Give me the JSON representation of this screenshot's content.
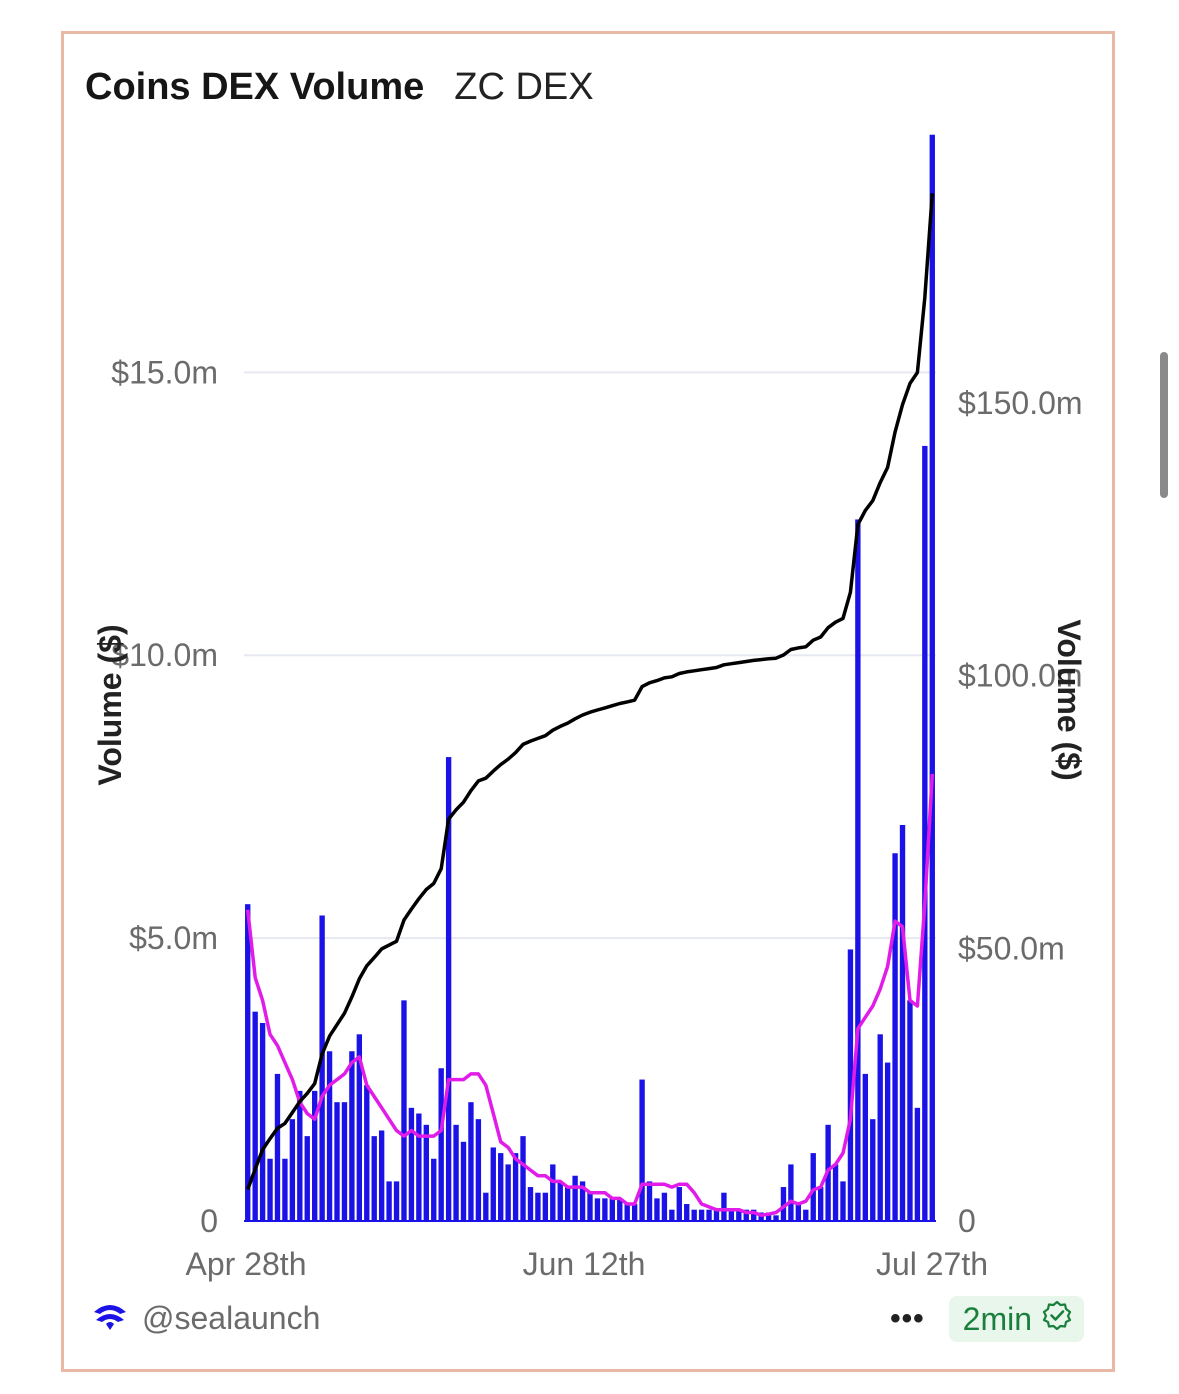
{
  "header": {
    "title": "Coins DEX Volume",
    "subtitle": "ZC DEX"
  },
  "footer": {
    "handle": "@sealaunch",
    "more": "•••",
    "freshness": "2min"
  },
  "icons": {
    "logo": "sealaunch-logo-icon",
    "verified": "verified-check-icon"
  },
  "colors": {
    "bars": "#1a12e6",
    "moving_average": "#e21ce8",
    "cumulative": "#000000",
    "grid": "#e6e8f2",
    "border": "#e9b9a5"
  },
  "chart_data": {
    "type": "bar",
    "x_ticks": [
      "Apr 28th",
      "Jun 12th",
      "Jul 27th"
    ],
    "x_range": [
      "Apr 28th",
      "Jul 27th"
    ],
    "left_axis": {
      "label": "Volume ($)",
      "ticks": [
        "0",
        "$5.0m",
        "$10.0m",
        "$15.0m"
      ],
      "tick_values": [
        0,
        5,
        10,
        15
      ],
      "range": [
        0,
        18.4
      ],
      "unit": "$m"
    },
    "right_axis": {
      "label": "Volume ($)",
      "ticks": [
        "0",
        "$50.0m",
        "$100.0m",
        "$150.0m"
      ],
      "tick_values": [
        0,
        50,
        100,
        150
      ],
      "range": [
        0,
        190.9
      ],
      "unit": "$m"
    },
    "grid": true,
    "series": [
      {
        "kind": "bar",
        "axis": "left",
        "values": [
          5.6,
          3.7,
          3.5,
          1.1,
          2.6,
          1.1,
          1.8,
          2.3,
          1.5,
          2.3,
          5.4,
          3.0,
          2.1,
          2.1,
          3.0,
          3.3,
          2.4,
          1.5,
          1.6,
          0.7,
          0.7,
          3.9,
          2.0,
          1.9,
          1.7,
          1.1,
          2.7,
          8.2,
          1.7,
          1.4,
          2.1,
          1.8,
          0.5,
          1.3,
          1.2,
          1.0,
          1.2,
          1.5,
          0.6,
          0.5,
          0.5,
          1.0,
          0.7,
          0.6,
          0.8,
          0.7,
          0.5,
          0.4,
          0.4,
          0.4,
          0.4,
          0.3,
          0.3,
          2.5,
          0.7,
          0.4,
          0.5,
          0.2,
          0.6,
          0.3,
          0.2,
          0.2,
          0.2,
          0.2,
          0.5,
          0.2,
          0.2,
          0.2,
          0.2,
          0.15,
          0.15,
          0.1,
          0.6,
          1.0,
          0.3,
          0.2,
          1.2,
          0.6,
          1.7,
          1.0,
          0.7,
          4.8,
          12.4,
          2.6,
          1.8,
          3.3,
          2.8,
          6.5,
          7.0,
          3.9,
          2.0,
          13.7,
          19.2
        ]
      },
      {
        "kind": "line",
        "axis": "left",
        "values": [
          5.5,
          4.3,
          3.9,
          3.3,
          3.1,
          2.8,
          2.5,
          2.1,
          1.9,
          1.8,
          2.2,
          2.4,
          2.5,
          2.6,
          2.8,
          2.9,
          2.4,
          2.2,
          2.0,
          1.8,
          1.6,
          1.5,
          1.6,
          1.5,
          1.5,
          1.5,
          1.6,
          2.5,
          2.5,
          2.5,
          2.6,
          2.6,
          2.4,
          1.9,
          1.4,
          1.3,
          1.1,
          1.0,
          0.9,
          0.8,
          0.8,
          0.7,
          0.7,
          0.6,
          0.6,
          0.6,
          0.5,
          0.5,
          0.5,
          0.4,
          0.4,
          0.3,
          0.3,
          0.65,
          0.65,
          0.65,
          0.65,
          0.6,
          0.65,
          0.65,
          0.5,
          0.3,
          0.25,
          0.2,
          0.2,
          0.2,
          0.2,
          0.15,
          0.15,
          0.1,
          0.12,
          0.15,
          0.25,
          0.35,
          0.3,
          0.35,
          0.55,
          0.6,
          0.9,
          1.0,
          1.2,
          1.8,
          3.4,
          3.6,
          3.8,
          4.1,
          4.5,
          5.3,
          5.2,
          3.9,
          3.8,
          5.6,
          7.9
        ]
      },
      {
        "kind": "line",
        "axis": "right",
        "values": [
          5.8,
          9.5,
          13.1,
          15.1,
          17.0,
          17.9,
          19.9,
          21.9,
          23.4,
          25.2,
          30.6,
          33.9,
          36.0,
          38.1,
          41.1,
          44.4,
          46.8,
          48.3,
          49.9,
          50.6,
          51.3,
          55.2,
          57.2,
          59.1,
          60.8,
          61.9,
          64.6,
          73.7,
          75.4,
          76.8,
          78.9,
          80.7,
          81.2,
          82.5,
          83.7,
          84.7,
          85.9,
          87.4,
          88.0,
          88.5,
          89.0,
          90.0,
          90.7,
          91.3,
          92.1,
          92.8,
          93.3,
          93.7,
          94.1,
          94.5,
          94.9,
          95.2,
          95.5,
          98.0,
          98.7,
          99.1,
          99.6,
          99.8,
          100.4,
          100.7,
          100.9,
          101.1,
          101.3,
          101.5,
          102.0,
          102.2,
          102.4,
          102.6,
          102.8,
          102.95,
          103.1,
          103.2,
          103.8,
          104.8,
          105.1,
          105.3,
          106.5,
          107.1,
          108.8,
          109.8,
          110.5,
          115.3,
          127.7,
          130.3,
          132.1,
          135.4,
          138.2,
          144.7,
          149.7,
          153.6,
          155.6,
          169.3,
          188.5
        ]
      }
    ]
  }
}
